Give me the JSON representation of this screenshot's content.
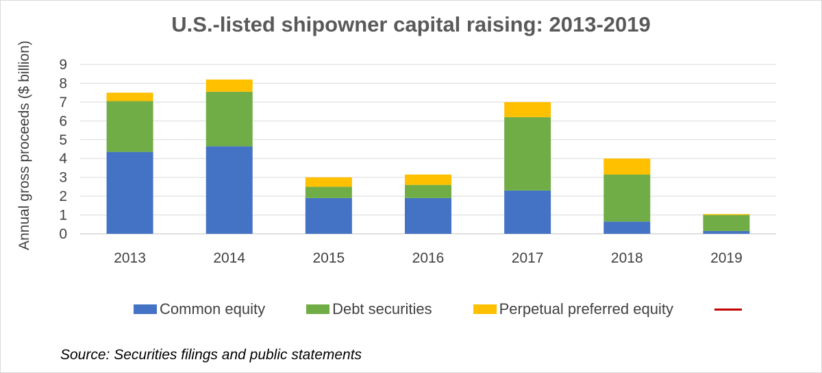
{
  "chart_data": {
    "type": "bar",
    "stacked": true,
    "title": "U.S.-listed shipowner capital raising: 2013-2019",
    "xlabel": "",
    "ylabel": "Annual gross proceeds ($ billion)",
    "ylim": [
      0,
      9
    ],
    "yticks": [
      "0",
      "1",
      "2",
      "3",
      "4",
      "5",
      "6",
      "7",
      "8",
      "9"
    ],
    "grid": true,
    "legend_position": "bottom",
    "categories": [
      "2013",
      "2014",
      "2015",
      "2016",
      "2017",
      "2018",
      "2019"
    ],
    "series": [
      {
        "name": "Common equity",
        "color": "#4472c4",
        "values": [
          4.35,
          4.65,
          1.9,
          1.9,
          2.3,
          0.65,
          0.15
        ]
      },
      {
        "name": "Debt securities",
        "color": "#70ad47",
        "values": [
          2.7,
          2.9,
          0.6,
          0.7,
          3.9,
          2.5,
          0.85
        ]
      },
      {
        "name": "Perpetual preferred equity",
        "color": "#ffc000",
        "values": [
          0.45,
          0.65,
          0.5,
          0.55,
          0.8,
          0.85,
          0.05
        ]
      }
    ],
    "extra_legend": {
      "name": "",
      "color": "#c00000"
    },
    "source": "Source: Securities filings and public statements"
  }
}
